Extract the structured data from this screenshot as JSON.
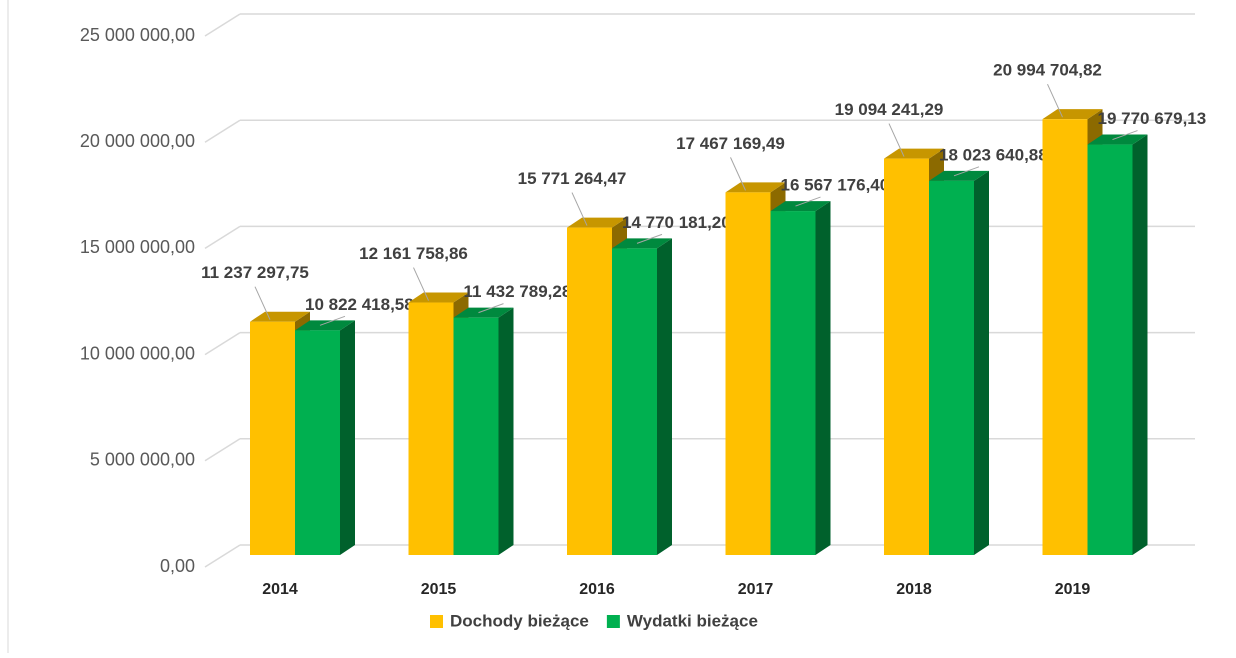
{
  "chart_data": {
    "type": "bar3d",
    "categories": [
      "2014",
      "2015",
      "2016",
      "2017",
      "2018",
      "2019"
    ],
    "series": [
      {
        "name": "Dochody bieżące",
        "color": "#ffc000",
        "values": [
          11237297.75,
          12161758.86,
          15771264.47,
          17467169.49,
          19094241.29,
          20994704.82
        ],
        "value_labels": [
          "11 237 297,75",
          "12 161 758,86",
          "15 771 264,47",
          "17 467 169,49",
          "19 094 241,29",
          "20 994 704,82"
        ]
      },
      {
        "name": "Wydatki bieżące",
        "color": "#00b050",
        "values": [
          10822418.58,
          11432789.28,
          14770181.2,
          16567176.4,
          18023640.88,
          19770679.13
        ],
        "value_labels": [
          "10 822 418,58",
          "11 432 789,28",
          "14 770 181,20",
          "16 567 176,40",
          "18 023 640,88",
          "19 770 679,13"
        ]
      }
    ],
    "ylim": [
      0,
      25000000
    ],
    "yticks": [
      {
        "value": 0,
        "label": "0,00"
      },
      {
        "value": 5000000,
        "label": "5 000 000,00"
      },
      {
        "value": 10000000,
        "label": "10 000 000,00"
      },
      {
        "value": 15000000,
        "label": "15 000 000,00"
      },
      {
        "value": 20000000,
        "label": "20 000 000,00"
      },
      {
        "value": 25000000,
        "label": "25 000 000,00"
      }
    ],
    "grid": true,
    "legend": "bottom"
  }
}
